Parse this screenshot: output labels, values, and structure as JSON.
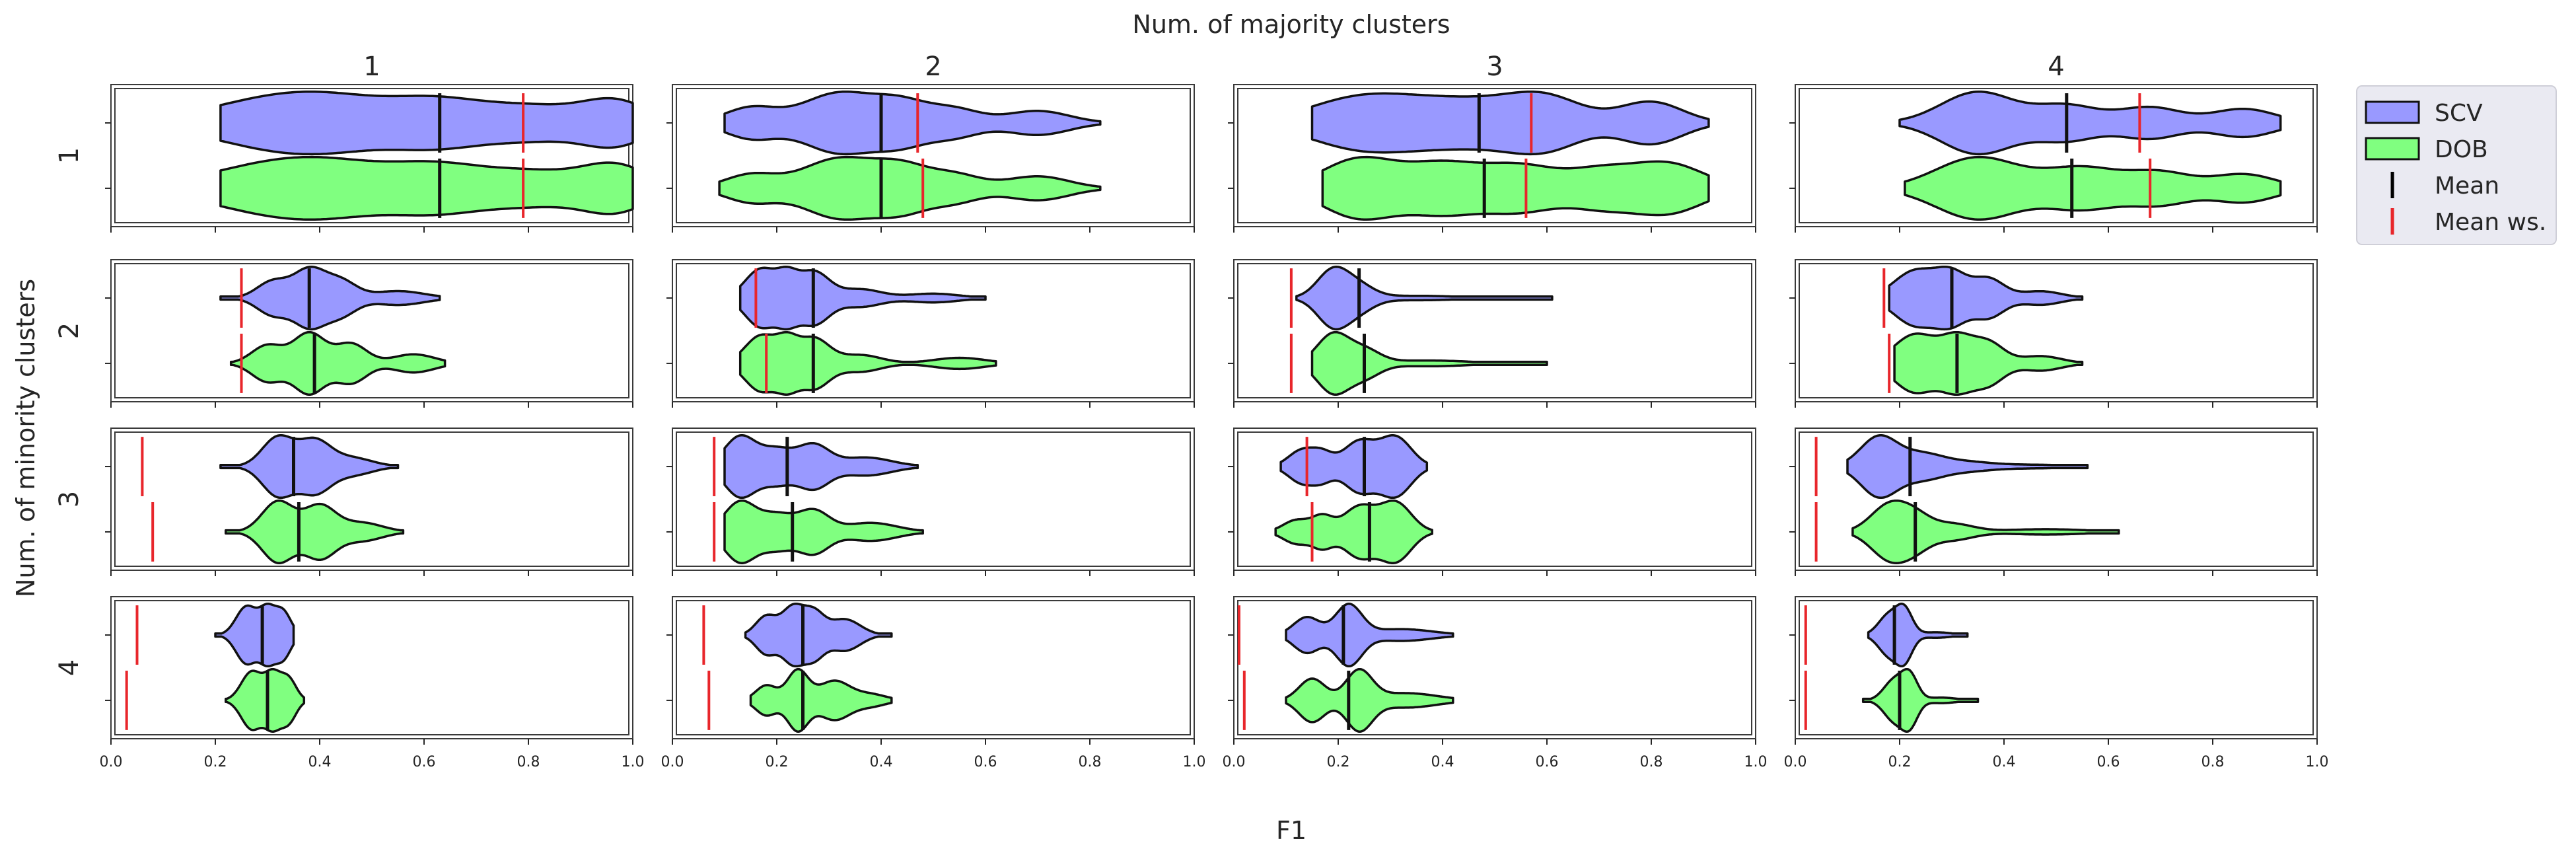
{
  "chart_data": {
    "type": "violin",
    "title": "Num. of majority clusters",
    "xlabel": "F1",
    "ylabel": "Num. of minority clusters",
    "column_labels": [
      "1",
      "2",
      "3",
      "4"
    ],
    "row_labels": [
      "1",
      "2",
      "3",
      "4"
    ],
    "xlim": [
      0.0,
      1.0
    ],
    "x_ticks": [
      0.0,
      0.2,
      0.4,
      0.6,
      0.8,
      1.0
    ],
    "x_tick_labels": [
      "0.0",
      "0.2",
      "0.4",
      "0.6",
      "0.8",
      "1.0"
    ],
    "series_names": [
      "SCV",
      "DOB"
    ],
    "legend": {
      "placement": "outside-right",
      "entries": [
        {
          "label": "SCV",
          "kind": "patch",
          "color": "#9999ff"
        },
        {
          "label": "DOB",
          "kind": "patch",
          "color": "#80ff80"
        },
        {
          "label": "Mean",
          "kind": "line",
          "color": "#000000"
        },
        {
          "label": "Mean ws.",
          "kind": "line",
          "color": "#e8262b"
        }
      ]
    },
    "colors": {
      "SCV": "#9999ff",
      "DOB": "#80ff80",
      "mean": "#111111",
      "mean_ws": "#e8262b"
    },
    "panels": [
      {
        "row": 1,
        "col": 1,
        "SCV": {
          "range": [
            0.21,
            1.0
          ],
          "mean": 0.63,
          "mean_ws": 0.79,
          "bumps": [
            [
              0.3,
              1.0,
              0.13
            ],
            [
              0.45,
              0.9,
              0.12
            ],
            [
              0.62,
              0.7,
              0.08
            ],
            [
              0.8,
              0.9,
              0.12
            ],
            [
              0.97,
              0.9,
              0.06
            ]
          ]
        },
        "DOB": {
          "range": [
            0.21,
            1.0
          ],
          "mean": 0.63,
          "mean_ws": 0.79,
          "bumps": [
            [
              0.3,
              1.0,
              0.13
            ],
            [
              0.45,
              0.9,
              0.12
            ],
            [
              0.62,
              0.7,
              0.08
            ],
            [
              0.8,
              0.9,
              0.12
            ],
            [
              0.97,
              0.95,
              0.06
            ]
          ]
        }
      },
      {
        "row": 1,
        "col": 2,
        "SCV": {
          "range": [
            0.1,
            0.82
          ],
          "mean": 0.4,
          "mean_ws": 0.47,
          "bumps": [
            [
              0.15,
              0.5,
              0.05
            ],
            [
              0.32,
              1.0,
              0.07
            ],
            [
              0.44,
              0.6,
              0.05
            ],
            [
              0.54,
              0.45,
              0.05
            ],
            [
              0.7,
              0.4,
              0.06
            ]
          ]
        },
        "DOB": {
          "range": [
            0.09,
            0.82
          ],
          "mean": 0.4,
          "mean_ws": 0.48,
          "bumps": [
            [
              0.15,
              0.45,
              0.05
            ],
            [
              0.32,
              1.0,
              0.07
            ],
            [
              0.44,
              0.65,
              0.05
            ],
            [
              0.54,
              0.45,
              0.05
            ],
            [
              0.7,
              0.4,
              0.06
            ]
          ]
        }
      },
      {
        "row": 1,
        "col": 3,
        "SCV": {
          "range": [
            0.15,
            0.91
          ],
          "mean": 0.47,
          "mean_ws": 0.57,
          "bumps": [
            [
              0.24,
              0.95,
              0.1
            ],
            [
              0.45,
              0.9,
              0.12
            ],
            [
              0.6,
              0.8,
              0.07
            ],
            [
              0.8,
              0.85,
              0.06
            ]
          ]
        },
        "DOB": {
          "range": [
            0.17,
            0.91
          ],
          "mean": 0.48,
          "mean_ws": 0.56,
          "bumps": [
            [
              0.24,
              1.0,
              0.07
            ],
            [
              0.4,
              0.8,
              0.07
            ],
            [
              0.55,
              0.75,
              0.07
            ],
            [
              0.7,
              0.55,
              0.06
            ],
            [
              0.83,
              0.85,
              0.07
            ]
          ]
        }
      },
      {
        "row": 1,
        "col": 4,
        "SCV": {
          "range": [
            0.2,
            0.93
          ],
          "mean": 0.52,
          "mean_ws": 0.66,
          "bumps": [
            [
              0.35,
              1.0,
              0.07
            ],
            [
              0.52,
              0.55,
              0.06
            ],
            [
              0.68,
              0.5,
              0.06
            ],
            [
              0.86,
              0.45,
              0.06
            ]
          ]
        },
        "DOB": {
          "range": [
            0.21,
            0.93
          ],
          "mean": 0.53,
          "mean_ws": 0.68,
          "bumps": [
            [
              0.35,
              1.0,
              0.08
            ],
            [
              0.55,
              0.65,
              0.07
            ],
            [
              0.7,
              0.5,
              0.06
            ],
            [
              0.86,
              0.45,
              0.06
            ]
          ]
        }
      },
      {
        "row": 2,
        "col": 1,
        "SCV": {
          "range": [
            0.21,
            0.63
          ],
          "mean": 0.38,
          "mean_ws": 0.25,
          "bumps": [
            [
              0.31,
              0.6,
              0.03
            ],
            [
              0.38,
              1.0,
              0.03
            ],
            [
              0.44,
              0.6,
              0.03
            ],
            [
              0.55,
              0.25,
              0.05
            ]
          ]
        },
        "DOB": {
          "range": [
            0.23,
            0.64
          ],
          "mean": 0.39,
          "mean_ws": 0.25,
          "bumps": [
            [
              0.3,
              0.6,
              0.03
            ],
            [
              0.38,
              1.0,
              0.03
            ],
            [
              0.46,
              0.65,
              0.03
            ],
            [
              0.58,
              0.3,
              0.04
            ]
          ]
        }
      },
      {
        "row": 2,
        "col": 2,
        "SCV": {
          "range": [
            0.13,
            0.6
          ],
          "mean": 0.27,
          "mean_ws": 0.16,
          "bumps": [
            [
              0.17,
              1.0,
              0.03
            ],
            [
              0.22,
              0.6,
              0.02
            ],
            [
              0.27,
              0.9,
              0.03
            ],
            [
              0.36,
              0.3,
              0.04
            ],
            [
              0.5,
              0.15,
              0.05
            ]
          ]
        },
        "DOB": {
          "range": [
            0.13,
            0.62
          ],
          "mean": 0.27,
          "mean_ws": 0.18,
          "bumps": [
            [
              0.17,
              1.0,
              0.03
            ],
            [
              0.22,
              0.65,
              0.02
            ],
            [
              0.27,
              0.9,
              0.03
            ],
            [
              0.36,
              0.3,
              0.04
            ],
            [
              0.55,
              0.2,
              0.05
            ]
          ]
        }
      },
      {
        "row": 2,
        "col": 3,
        "SCV": {
          "range": [
            0.12,
            0.61
          ],
          "mean": 0.24,
          "mean_ws": 0.11,
          "bumps": [
            [
              0.19,
              1.0,
              0.03
            ],
            [
              0.24,
              0.4,
              0.03
            ],
            [
              0.35,
              0.08,
              0.08
            ]
          ]
        },
        "DOB": {
          "range": [
            0.15,
            0.6
          ],
          "mean": 0.25,
          "mean_ws": 0.11,
          "bumps": [
            [
              0.19,
              1.0,
              0.03
            ],
            [
              0.25,
              0.45,
              0.03
            ],
            [
              0.37,
              0.1,
              0.08
            ]
          ]
        }
      },
      {
        "row": 2,
        "col": 4,
        "SCV": {
          "range": [
            0.18,
            0.55
          ],
          "mean": 0.3,
          "mean_ws": 0.17,
          "bumps": [
            [
              0.23,
              1.0,
              0.04
            ],
            [
              0.3,
              0.85,
              0.03
            ],
            [
              0.37,
              0.7,
              0.03
            ],
            [
              0.47,
              0.25,
              0.04
            ]
          ]
        },
        "DOB": {
          "range": [
            0.19,
            0.55
          ],
          "mean": 0.31,
          "mean_ws": 0.18,
          "bumps": [
            [
              0.23,
              1.0,
              0.04
            ],
            [
              0.31,
              0.85,
              0.03
            ],
            [
              0.37,
              0.7,
              0.03
            ],
            [
              0.47,
              0.25,
              0.04
            ]
          ]
        }
      },
      {
        "row": 3,
        "col": 1,
        "SCV": {
          "range": [
            0.21,
            0.55
          ],
          "mean": 0.35,
          "mean_ws": 0.06,
          "bumps": [
            [
              0.32,
              1.0,
              0.03
            ],
            [
              0.39,
              0.85,
              0.03
            ],
            [
              0.46,
              0.3,
              0.04
            ]
          ]
        },
        "DOB": {
          "range": [
            0.22,
            0.56
          ],
          "mean": 0.36,
          "mean_ws": 0.08,
          "bumps": [
            [
              0.32,
              1.0,
              0.03
            ],
            [
              0.4,
              0.85,
              0.03
            ],
            [
              0.48,
              0.3,
              0.04
            ]
          ]
        }
      },
      {
        "row": 3,
        "col": 2,
        "SCV": {
          "range": [
            0.1,
            0.47
          ],
          "mean": 0.22,
          "mean_ws": 0.08,
          "bumps": [
            [
              0.13,
              1.0,
              0.03
            ],
            [
              0.2,
              0.55,
              0.03
            ],
            [
              0.27,
              0.7,
              0.03
            ],
            [
              0.37,
              0.3,
              0.05
            ]
          ]
        },
        "DOB": {
          "range": [
            0.1,
            0.48
          ],
          "mean": 0.23,
          "mean_ws": 0.08,
          "bumps": [
            [
              0.13,
              1.0,
              0.03
            ],
            [
              0.2,
              0.55,
              0.03
            ],
            [
              0.27,
              0.7,
              0.03
            ],
            [
              0.38,
              0.3,
              0.05
            ]
          ]
        }
      },
      {
        "row": 3,
        "col": 3,
        "SCV": {
          "range": [
            0.09,
            0.37
          ],
          "mean": 0.25,
          "mean_ws": 0.14,
          "bumps": [
            [
              0.13,
              0.55,
              0.025
            ],
            [
              0.17,
              0.4,
              0.02
            ],
            [
              0.24,
              0.85,
              0.03
            ],
            [
              0.31,
              1.0,
              0.03
            ]
          ]
        },
        "DOB": {
          "range": [
            0.08,
            0.38
          ],
          "mean": 0.26,
          "mean_ws": 0.15,
          "bumps": [
            [
              0.12,
              0.4,
              0.025
            ],
            [
              0.17,
              0.5,
              0.02
            ],
            [
              0.24,
              0.85,
              0.03
            ],
            [
              0.31,
              1.0,
              0.03
            ]
          ]
        }
      },
      {
        "row": 3,
        "col": 4,
        "SCV": {
          "range": [
            0.1,
            0.56
          ],
          "mean": 0.22,
          "mean_ws": 0.04,
          "bumps": [
            [
              0.16,
              1.0,
              0.035
            ],
            [
              0.24,
              0.4,
              0.04
            ],
            [
              0.32,
              0.15,
              0.05
            ],
            [
              0.45,
              0.06,
              0.08
            ]
          ]
        },
        "DOB": {
          "range": [
            0.11,
            0.62
          ],
          "mean": 0.23,
          "mean_ws": 0.04,
          "bumps": [
            [
              0.18,
              1.0,
              0.035
            ],
            [
              0.23,
              0.5,
              0.03
            ],
            [
              0.3,
              0.3,
              0.04
            ],
            [
              0.48,
              0.1,
              0.08
            ]
          ]
        }
      },
      {
        "row": 4,
        "col": 1,
        "SCV": {
          "range": [
            0.2,
            0.35
          ],
          "mean": 0.29,
          "mean_ws": 0.05,
          "bumps": [
            [
              0.26,
              1.0,
              0.02
            ],
            [
              0.3,
              0.85,
              0.015
            ],
            [
              0.33,
              0.8,
              0.015
            ]
          ]
        },
        "DOB": {
          "range": [
            0.22,
            0.37
          ],
          "mean": 0.3,
          "mean_ws": 0.03,
          "bumps": [
            [
              0.27,
              1.0,
              0.02
            ],
            [
              0.31,
              0.85,
              0.015
            ],
            [
              0.34,
              0.75,
              0.015
            ]
          ]
        }
      },
      {
        "row": 4,
        "col": 2,
        "SCV": {
          "range": [
            0.14,
            0.42
          ],
          "mean": 0.25,
          "mean_ws": 0.06,
          "bumps": [
            [
              0.18,
              0.6,
              0.02
            ],
            [
              0.23,
              0.85,
              0.02
            ],
            [
              0.27,
              0.7,
              0.02
            ],
            [
              0.33,
              0.5,
              0.03
            ]
          ]
        },
        "DOB": {
          "range": [
            0.15,
            0.42
          ],
          "mean": 0.25,
          "mean_ws": 0.07,
          "bumps": [
            [
              0.18,
              0.5,
              0.02
            ],
            [
              0.24,
              1.0,
              0.02
            ],
            [
              0.31,
              0.65,
              0.03
            ],
            [
              0.38,
              0.2,
              0.03
            ]
          ]
        }
      },
      {
        "row": 4,
        "col": 3,
        "SCV": {
          "range": [
            0.1,
            0.42
          ],
          "mean": 0.21,
          "mean_ws": 0.01,
          "bumps": [
            [
              0.14,
              0.6,
              0.025
            ],
            [
              0.22,
              1.0,
              0.025
            ],
            [
              0.32,
              0.2,
              0.06
            ]
          ]
        },
        "DOB": {
          "range": [
            0.1,
            0.42
          ],
          "mean": 0.22,
          "mean_ws": 0.02,
          "bumps": [
            [
              0.15,
              0.75,
              0.025
            ],
            [
              0.24,
              1.0,
              0.025
            ],
            [
              0.33,
              0.25,
              0.06
            ]
          ]
        }
      },
      {
        "row": 4,
        "col": 4,
        "SCV": {
          "range": [
            0.14,
            0.33
          ],
          "mean": 0.19,
          "mean_ws": 0.02,
          "bumps": [
            [
              0.18,
              0.9,
              0.02
            ],
            [
              0.21,
              1.0,
              0.015
            ],
            [
              0.27,
              0.12,
              0.03
            ]
          ]
        },
        "DOB": {
          "range": [
            0.13,
            0.35
          ],
          "mean": 0.2,
          "mean_ws": 0.02,
          "bumps": [
            [
              0.19,
              0.9,
              0.02
            ],
            [
              0.22,
              1.0,
              0.015
            ],
            [
              0.28,
              0.12,
              0.03
            ]
          ]
        }
      }
    ]
  }
}
